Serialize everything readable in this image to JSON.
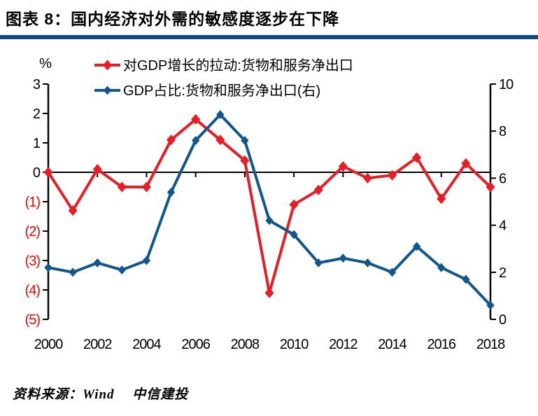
{
  "header": {
    "title": "图表 8：国内经济对外需的敏感度逐步在下降"
  },
  "footer": {
    "source": "资料来源：Wind　 中信建投"
  },
  "colors": {
    "divider": "#12497B",
    "series_red": "#E91D25",
    "series_blue": "#11568C",
    "negative_tick_label": "#FF0000",
    "axis": "#000000"
  },
  "chart_data": {
    "type": "line",
    "title": "图表 8：国内经济对外需的敏感度逐步在下降",
    "x": [
      2000,
      2001,
      2002,
      2003,
      2004,
      2005,
      2006,
      2007,
      2008,
      2009,
      2010,
      2011,
      2012,
      2013,
      2014,
      2015,
      2016,
      2017,
      2018
    ],
    "x_tick_labels": [
      "2000",
      "2002",
      "2004",
      "2006",
      "2008",
      "2010",
      "2012",
      "2014",
      "2016",
      "2018"
    ],
    "left_axis": {
      "unit_label": "%",
      "range": [
        -5,
        3
      ],
      "tick_values": [
        3,
        2,
        1,
        0,
        -1,
        -2,
        -3,
        -4,
        -5
      ],
      "tick_labels": [
        "3",
        "2",
        "1",
        "0",
        "(1)",
        "(2)",
        "(3)",
        "(4)",
        "(5)"
      ],
      "negative_label_color": "#FF0000"
    },
    "right_axis": {
      "range": [
        0,
        10
      ],
      "tick_values": [
        10,
        8,
        6,
        4,
        2,
        0
      ],
      "tick_labels": [
        "10",
        "8",
        "6",
        "4",
        "2",
        "0"
      ]
    },
    "grid": "off",
    "legend_position": "top",
    "series": [
      {
        "name": "对GDP增长的拉动:货物和服务净出口",
        "axis": "left",
        "color": "#E91D25",
        "marker": "diamond",
        "values": [
          0.0,
          -1.3,
          0.1,
          -0.5,
          -0.5,
          1.1,
          1.8,
          1.1,
          0.4,
          -4.1,
          -1.1,
          -0.6,
          0.2,
          -0.2,
          -0.1,
          0.5,
          -0.9,
          0.3,
          -0.5
        ]
      },
      {
        "name": "GDP占比:货物和服务净出口(右)",
        "axis": "right",
        "color": "#11568C",
        "marker": "diamond",
        "values": [
          2.2,
          2.0,
          2.4,
          2.1,
          2.5,
          5.4,
          7.6,
          8.7,
          7.6,
          4.2,
          3.6,
          2.4,
          2.6,
          2.4,
          2.0,
          3.1,
          2.2,
          1.7,
          0.6
        ]
      }
    ]
  }
}
